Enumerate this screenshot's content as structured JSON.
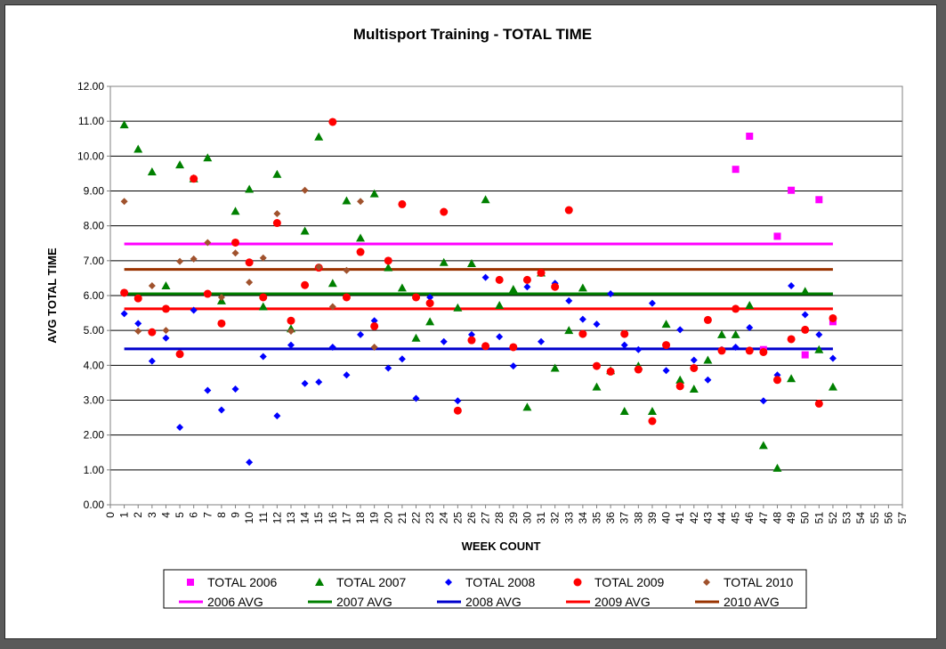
{
  "chart_data": {
    "type": "scatter",
    "title": "Multisport Training - TOTAL TIME",
    "xlabel": "WEEK COUNT",
    "ylabel": "AVG TOTAL TIME",
    "xlim": [
      0,
      57
    ],
    "ylim": [
      0,
      12
    ],
    "x_ticks": [
      0,
      1,
      2,
      3,
      4,
      5,
      6,
      7,
      8,
      9,
      10,
      11,
      12,
      13,
      14,
      15,
      16,
      17,
      18,
      19,
      20,
      21,
      22,
      23,
      24,
      25,
      26,
      27,
      28,
      29,
      30,
      31,
      32,
      33,
      34,
      35,
      36,
      37,
      38,
      39,
      40,
      41,
      42,
      43,
      44,
      45,
      46,
      47,
      48,
      49,
      50,
      51,
      52,
      53,
      54,
      55,
      56,
      57
    ],
    "y_ticks": [
      "0.00",
      "1.00",
      "2.00",
      "3.00",
      "4.00",
      "5.00",
      "6.00",
      "7.00",
      "8.00",
      "9.00",
      "10.00",
      "11.00",
      "12.00"
    ],
    "grid": "horizontal",
    "legend_position": "bottom",
    "series": [
      {
        "name": "TOTAL 2006",
        "marker": "square",
        "color": "#ff00ff",
        "points": [
          [
            45,
            9.62
          ],
          [
            46,
            10.57
          ],
          [
            47,
            4.45
          ],
          [
            48,
            7.7
          ],
          [
            49,
            9.02
          ],
          [
            50,
            4.3
          ],
          [
            51,
            8.75
          ],
          [
            52,
            5.25
          ]
        ]
      },
      {
        "name": "TOTAL 2007",
        "marker": "triangle",
        "color": "#008000",
        "points": [
          [
            1,
            10.9
          ],
          [
            2,
            10.2
          ],
          [
            3,
            9.55
          ],
          [
            4,
            6.28
          ],
          [
            5,
            9.75
          ],
          [
            6,
            9.35
          ],
          [
            7,
            9.95
          ],
          [
            8,
            5.85
          ],
          [
            9,
            8.42
          ],
          [
            10,
            9.05
          ],
          [
            11,
            5.68
          ],
          [
            12,
            9.48
          ],
          [
            13,
            5.05
          ],
          [
            14,
            7.85
          ],
          [
            15,
            10.55
          ],
          [
            16,
            6.35
          ],
          [
            17,
            8.72
          ],
          [
            18,
            7.65
          ],
          [
            19,
            8.92
          ],
          [
            20,
            6.8
          ],
          [
            21,
            6.22
          ],
          [
            22,
            4.78
          ],
          [
            23,
            5.25
          ],
          [
            24,
            6.95
          ],
          [
            25,
            5.65
          ],
          [
            26,
            6.92
          ],
          [
            27,
            8.75
          ],
          [
            28,
            5.72
          ],
          [
            29,
            6.18
          ],
          [
            30,
            2.8
          ],
          [
            31,
            6.65
          ],
          [
            32,
            3.92
          ],
          [
            33,
            5.0
          ],
          [
            34,
            6.22
          ],
          [
            35,
            3.38
          ],
          [
            36,
            3.85
          ],
          [
            37,
            2.68
          ],
          [
            38,
            3.98
          ],
          [
            39,
            2.68
          ],
          [
            40,
            5.18
          ],
          [
            41,
            3.58
          ],
          [
            42,
            3.32
          ],
          [
            43,
            4.15
          ],
          [
            44,
            4.88
          ],
          [
            45,
            4.88
          ],
          [
            46,
            5.72
          ],
          [
            47,
            1.7
          ],
          [
            48,
            1.05
          ],
          [
            49,
            3.62
          ],
          [
            50,
            6.12
          ],
          [
            51,
            4.45
          ],
          [
            52,
            3.38
          ]
        ]
      },
      {
        "name": "TOTAL 2008",
        "marker": "diamond",
        "color": "#0000ff",
        "points": [
          [
            1,
            5.48
          ],
          [
            2,
            5.2
          ],
          [
            3,
            4.12
          ],
          [
            4,
            4.78
          ],
          [
            5,
            2.22
          ],
          [
            6,
            5.58
          ],
          [
            7,
            3.28
          ],
          [
            8,
            2.72
          ],
          [
            9,
            3.32
          ],
          [
            10,
            1.22
          ],
          [
            11,
            4.25
          ],
          [
            12,
            2.55
          ],
          [
            13,
            4.58
          ],
          [
            14,
            3.48
          ],
          [
            15,
            3.52
          ],
          [
            16,
            4.52
          ],
          [
            17,
            3.72
          ],
          [
            18,
            4.88
          ],
          [
            19,
            5.28
          ],
          [
            20,
            3.92
          ],
          [
            21,
            4.18
          ],
          [
            22,
            3.05
          ],
          [
            23,
            5.95
          ],
          [
            24,
            4.68
          ],
          [
            25,
            2.98
          ],
          [
            26,
            4.88
          ],
          [
            27,
            6.52
          ],
          [
            28,
            4.82
          ],
          [
            29,
            3.98
          ],
          [
            30,
            6.25
          ],
          [
            31,
            4.68
          ],
          [
            32,
            6.35
          ],
          [
            33,
            5.85
          ],
          [
            34,
            5.32
          ],
          [
            35,
            5.18
          ],
          [
            36,
            6.05
          ],
          [
            37,
            4.58
          ],
          [
            38,
            4.45
          ],
          [
            39,
            5.78
          ],
          [
            40,
            3.85
          ],
          [
            41,
            5.02
          ],
          [
            42,
            4.15
          ],
          [
            43,
            3.58
          ],
          [
            44,
            4.45
          ],
          [
            45,
            4.52
          ],
          [
            46,
            5.08
          ],
          [
            47,
            2.98
          ],
          [
            48,
            3.72
          ],
          [
            49,
            6.28
          ],
          [
            50,
            5.45
          ],
          [
            51,
            4.88
          ],
          [
            52,
            4.2
          ]
        ]
      },
      {
        "name": "TOTAL 2009",
        "marker": "circle",
        "color": "#ff0000",
        "points": [
          [
            1,
            6.08
          ],
          [
            2,
            5.92
          ],
          [
            3,
            4.95
          ],
          [
            4,
            5.62
          ],
          [
            5,
            4.32
          ],
          [
            6,
            9.35
          ],
          [
            7,
            6.05
          ],
          [
            8,
            5.2
          ],
          [
            9,
            7.52
          ],
          [
            10,
            6.95
          ],
          [
            11,
            5.95
          ],
          [
            12,
            8.08
          ],
          [
            13,
            5.28
          ],
          [
            14,
            6.3
          ],
          [
            15,
            6.8
          ],
          [
            16,
            10.98
          ],
          [
            17,
            5.95
          ],
          [
            18,
            7.25
          ],
          [
            19,
            5.12
          ],
          [
            20,
            7.0
          ],
          [
            21,
            8.62
          ],
          [
            22,
            5.95
          ],
          [
            23,
            5.78
          ],
          [
            24,
            8.4
          ],
          [
            25,
            2.7
          ],
          [
            26,
            4.72
          ],
          [
            27,
            4.55
          ],
          [
            28,
            6.45
          ],
          [
            29,
            4.52
          ],
          [
            30,
            6.45
          ],
          [
            31,
            6.65
          ],
          [
            32,
            6.25
          ],
          [
            33,
            8.45
          ],
          [
            34,
            4.9
          ],
          [
            35,
            3.98
          ],
          [
            36,
            3.82
          ],
          [
            37,
            4.9
          ],
          [
            38,
            3.88
          ],
          [
            39,
            2.4
          ],
          [
            40,
            4.58
          ],
          [
            41,
            3.4
          ],
          [
            42,
            3.92
          ],
          [
            43,
            5.3
          ],
          [
            44,
            4.42
          ],
          [
            45,
            5.62
          ],
          [
            46,
            4.42
          ],
          [
            47,
            4.38
          ],
          [
            48,
            3.58
          ],
          [
            49,
            4.75
          ],
          [
            50,
            5.02
          ],
          [
            51,
            2.9
          ],
          [
            52,
            5.35
          ]
        ]
      },
      {
        "name": "TOTAL 2010",
        "marker": "diamond",
        "color": "#a0522d",
        "points": [
          [
            1,
            8.7
          ],
          [
            2,
            4.98
          ],
          [
            3,
            6.28
          ],
          [
            4,
            5.0
          ],
          [
            5,
            6.98
          ],
          [
            6,
            7.05
          ],
          [
            7,
            7.52
          ],
          [
            8,
            5.95
          ],
          [
            9,
            7.22
          ],
          [
            10,
            6.38
          ],
          [
            11,
            7.08
          ],
          [
            12,
            8.35
          ],
          [
            13,
            4.98
          ],
          [
            14,
            9.02
          ],
          [
            15,
            6.82
          ],
          [
            16,
            5.68
          ],
          [
            17,
            6.72
          ],
          [
            18,
            8.7
          ],
          [
            19,
            4.52
          ]
        ]
      },
      {
        "name": "2006 AVG",
        "marker": "line",
        "color": "#ff00ff",
        "y": 7.48,
        "x_range": [
          1,
          52
        ]
      },
      {
        "name": "2007 AVG",
        "marker": "line",
        "color": "#008000",
        "y": 6.05,
        "x_range": [
          1,
          52
        ]
      },
      {
        "name": "2008 AVG",
        "marker": "line",
        "color": "#0000cc",
        "y": 4.47,
        "x_range": [
          1,
          52
        ]
      },
      {
        "name": "2009 AVG",
        "marker": "line",
        "color": "#ff0000",
        "y": 5.62,
        "x_range": [
          1,
          52
        ]
      },
      {
        "name": "2010 AVG",
        "marker": "line",
        "color": "#993300",
        "y": 6.75,
        "x_range": [
          1,
          52
        ]
      }
    ]
  }
}
